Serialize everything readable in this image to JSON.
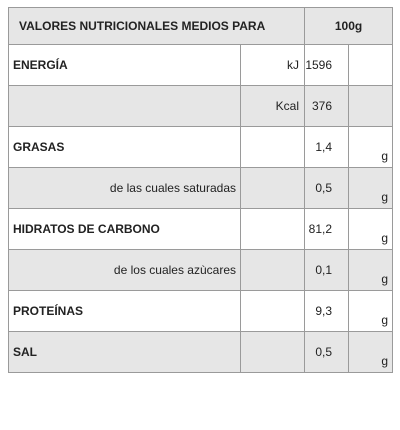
{
  "header": {
    "title": "VALORES NUTRICIONALES MEDIOS PARA",
    "per": "100g"
  },
  "rows": [
    {
      "label": "ENERGÍA",
      "sub": "",
      "unit": "kJ",
      "value": "1596",
      "g": ""
    },
    {
      "label": "",
      "sub": "",
      "unit": "Kcal",
      "value": "376",
      "g": ""
    },
    {
      "label": "GRASAS",
      "sub": "",
      "unit": "",
      "value": "1,4",
      "g": "g"
    },
    {
      "label": "",
      "sub": "de las cuales saturadas",
      "unit": "",
      "value": "0,5",
      "g": "g"
    },
    {
      "label": "HIDRATOS DE CARBONO",
      "sub": "",
      "unit": "",
      "value": "81,2",
      "g": "g"
    },
    {
      "label": "",
      "sub": "de los cuales azùcares",
      "unit": "",
      "value": "0,1",
      "g": "g"
    },
    {
      "label": "PROTEÍNAS",
      "sub": "",
      "unit": "",
      "value": "9,3",
      "g": "g"
    },
    {
      "label": "SAL",
      "sub": "",
      "unit": "",
      "value": "0,5",
      "g": "g"
    }
  ]
}
